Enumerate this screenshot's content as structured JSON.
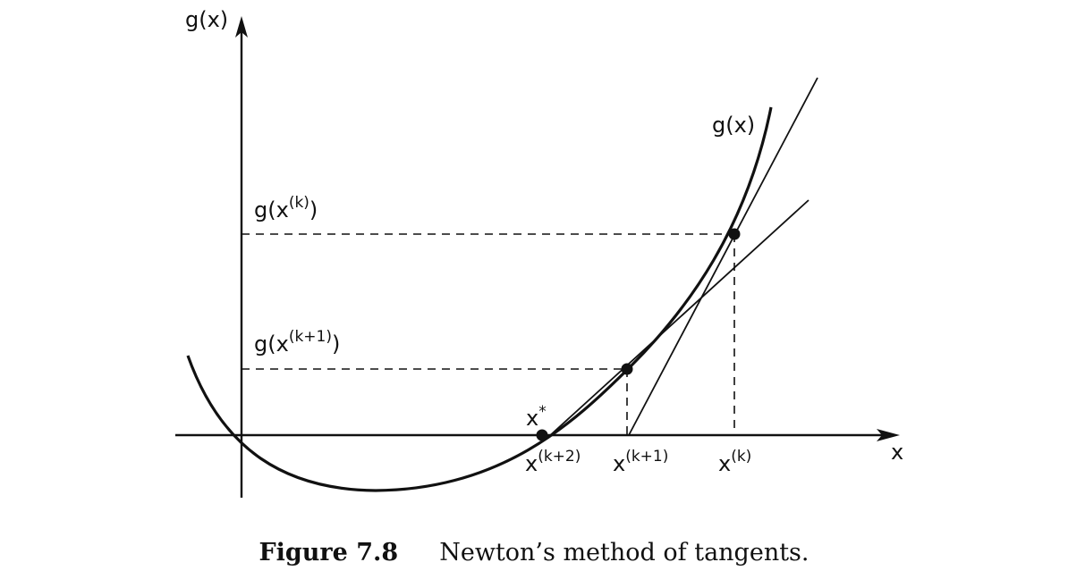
{
  "labels": {
    "y_axis": "g(x)",
    "x_axis": "x",
    "curve": "g(x)",
    "g_xk": "g(x(k))",
    "g_xk1": "g(x(k+1))",
    "x_star": "x*",
    "x_k2": "x(k+2)",
    "x_k1": "x(k+1)",
    "x_k": "x(k)"
  },
  "caption": {
    "number": "Figure 7.8",
    "text": "Newton’s method of tangents."
  }
}
